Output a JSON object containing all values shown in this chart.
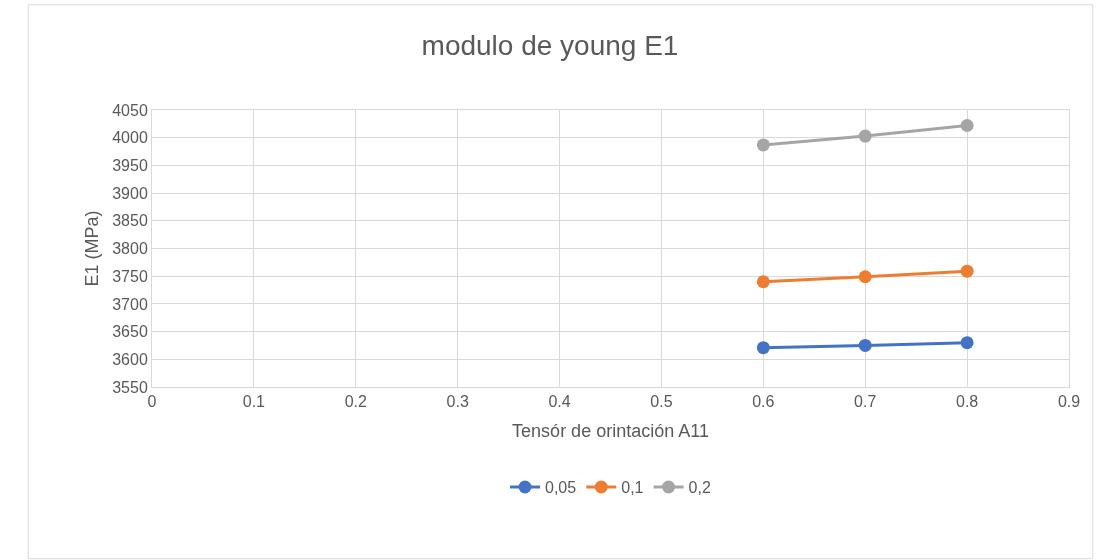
{
  "chart_data": {
    "type": "line",
    "title": "modulo de young E1",
    "xlabel": "Tensór de orintación A11",
    "ylabel": "E1 (MPa)",
    "x": [
      0.6,
      0.7,
      0.8
    ],
    "series": [
      {
        "name": "0,05",
        "color": "#4472c4",
        "values": [
          3621,
          3625,
          3630
        ]
      },
      {
        "name": "0,1",
        "color": "#ed7d31",
        "values": [
          3740,
          3749,
          3759
        ]
      },
      {
        "name": "0,2",
        "color": "#a5a5a5",
        "values": [
          3987,
          4003,
          4022
        ]
      }
    ],
    "xlim": [
      0,
      0.9
    ],
    "xticks": [
      0,
      0.1,
      0.2,
      0.3,
      0.4,
      0.5,
      0.6,
      0.7,
      0.8,
      0.9
    ],
    "ylim": [
      3550,
      4050
    ],
    "yticks": [
      3550,
      3600,
      3650,
      3700,
      3750,
      3800,
      3850,
      3900,
      3950,
      4000,
      4050
    ],
    "grid": true,
    "legend": "bottom",
    "marker": "circle",
    "line_style": "solid"
  }
}
